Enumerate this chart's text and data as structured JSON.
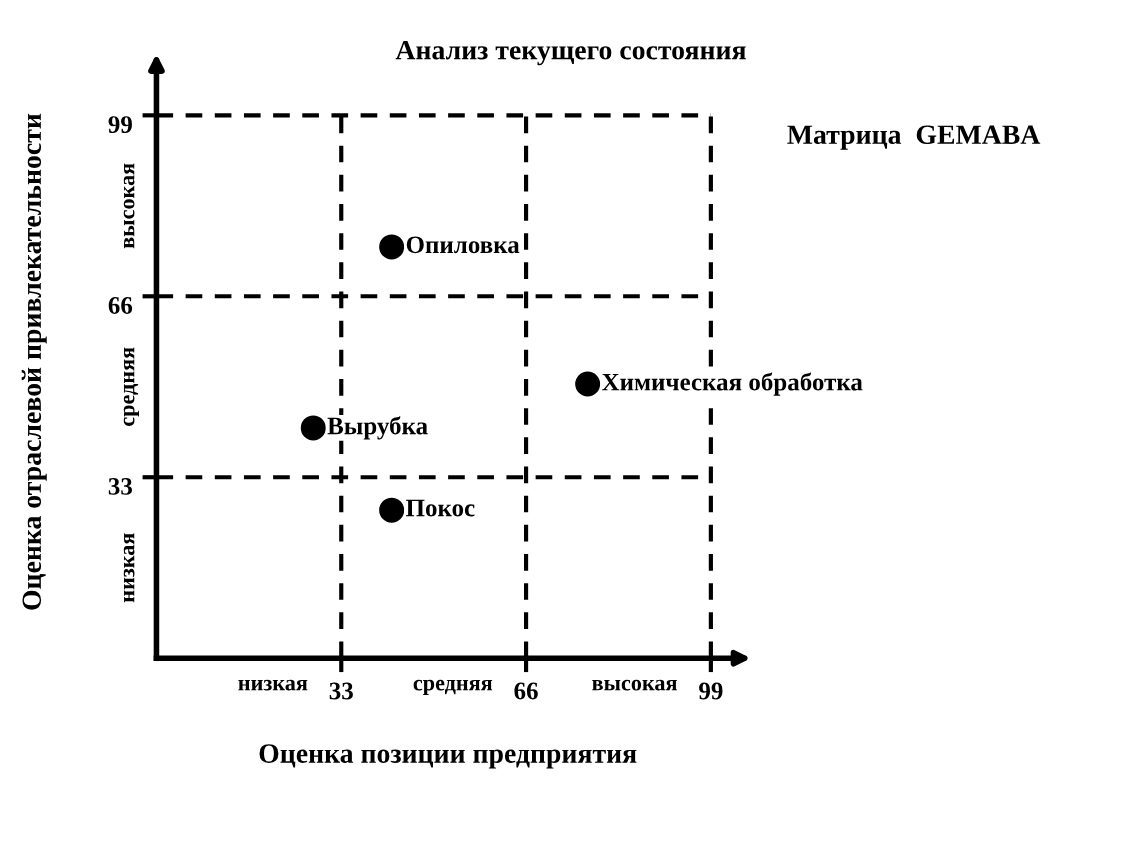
{
  "chart_data": {
    "type": "scatter",
    "title": "Анализ текущего состояния",
    "xlabel": "Оценка позиции предприятия",
    "ylabel": "Оценка отраслевой привлекательности",
    "x": [
      42,
      28,
      77,
      42
    ],
    "series": [
      {
        "color": "#000000",
        "values": [
          75,
          42,
          50,
          27
        ]
      }
    ],
    "marker": "circle",
    "xlim": [
      0,
      104
    ],
    "ylim": [
      0,
      108
    ],
    "xticks": [
      33,
      66,
      99
    ],
    "yticks": [
      33,
      66,
      99
    ],
    "grid": true,
    "annotations": [
      {
        "text": "Опиловка",
        "x": 42,
        "y": 75
      },
      {
        "text": "Вырубка",
        "x": 28,
        "y": 42
      },
      {
        "text": "Химическая обработка",
        "x": 77,
        "y": 50
      },
      {
        "text": "Покос",
        "x": 42,
        "y": 27
      },
      "Матрица  GEMABA",
      "низкая",
      "средняя",
      "высокая",
      "низкая",
      "средняя",
      "высокая"
    ]
  }
}
